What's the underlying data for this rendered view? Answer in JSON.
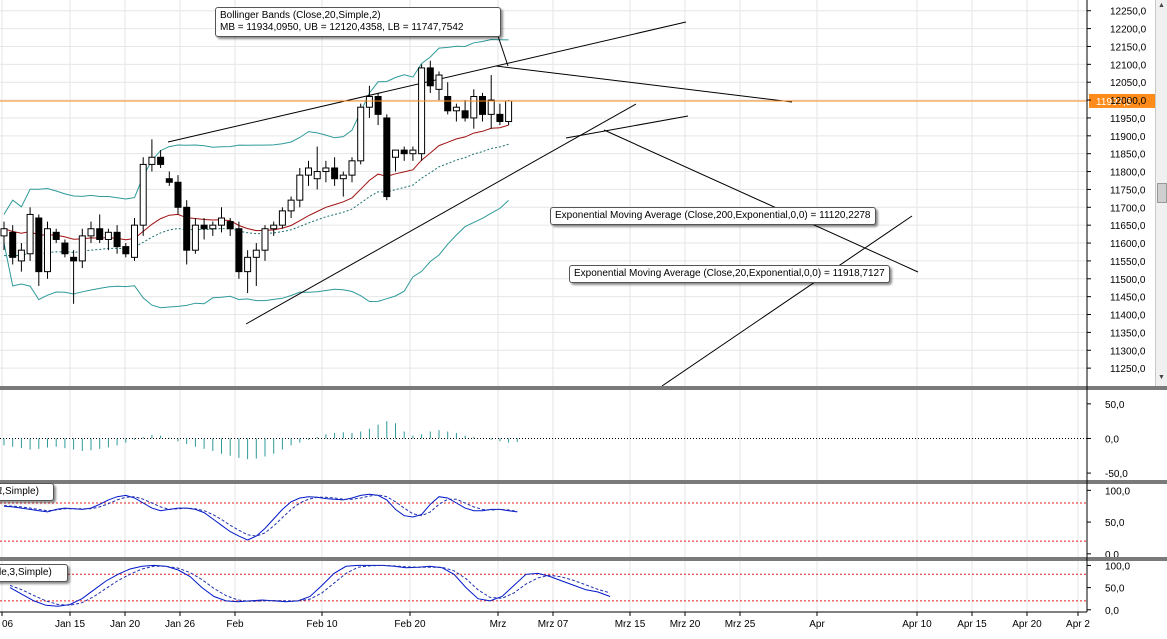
{
  "chart_data": [
    {
      "type": "candlestick",
      "ylim": [
        11200,
        12280
      ],
      "price_ticks": [
        "12250,0",
        "12200,0",
        "12150,0",
        "12100,0",
        "12050,0",
        "12000,0",
        "11950,0",
        "11900,0",
        "11850,0",
        "11800,0",
        "11750,0",
        "11700,0",
        "11650,0",
        "11600,0",
        "11550,0",
        "11500,0",
        "11450,0",
        "11400,0",
        "11350,0",
        "11300,0",
        "11250,0"
      ],
      "last_price": "11997,5",
      "candles": [
        {
          "o": 11620,
          "h": 11660,
          "l": 11580,
          "c": 11640
        },
        {
          "o": 11630,
          "h": 11650,
          "l": 11540,
          "c": 11560
        },
        {
          "o": 11550,
          "h": 11600,
          "l": 11520,
          "c": 11580
        },
        {
          "o": 11570,
          "h": 11700,
          "l": 11550,
          "c": 11680
        },
        {
          "o": 11670,
          "h": 11680,
          "l": 11480,
          "c": 11520
        },
        {
          "o": 11520,
          "h": 11660,
          "l": 11500,
          "c": 11640
        },
        {
          "o": 11630,
          "h": 11640,
          "l": 11600,
          "c": 11610
        },
        {
          "o": 11600,
          "h": 11610,
          "l": 11560,
          "c": 11570
        },
        {
          "o": 11560,
          "h": 11580,
          "l": 11430,
          "c": 11550
        },
        {
          "o": 11550,
          "h": 11640,
          "l": 11530,
          "c": 11620
        },
        {
          "o": 11620,
          "h": 11660,
          "l": 11600,
          "c": 11640
        },
        {
          "o": 11640,
          "h": 11680,
          "l": 11600,
          "c": 11610
        },
        {
          "o": 11610,
          "h": 11640,
          "l": 11580,
          "c": 11630
        },
        {
          "o": 11630,
          "h": 11650,
          "l": 11570,
          "c": 11590
        },
        {
          "o": 11590,
          "h": 11600,
          "l": 11560,
          "c": 11570
        },
        {
          "o": 11560,
          "h": 11670,
          "l": 11550,
          "c": 11650
        },
        {
          "o": 11650,
          "h": 11840,
          "l": 11620,
          "c": 11820
        },
        {
          "o": 11820,
          "h": 11890,
          "l": 11800,
          "c": 11840
        },
        {
          "o": 11840,
          "h": 11860,
          "l": 11810,
          "c": 11820
        },
        {
          "o": 11780,
          "h": 11800,
          "l": 11760,
          "c": 11770
        },
        {
          "o": 11770,
          "h": 11790,
          "l": 11680,
          "c": 11700
        },
        {
          "o": 11700,
          "h": 11720,
          "l": 11540,
          "c": 11580
        },
        {
          "o": 11580,
          "h": 11670,
          "l": 11570,
          "c": 11650
        },
        {
          "o": 11650,
          "h": 11670,
          "l": 11610,
          "c": 11640
        },
        {
          "o": 11640,
          "h": 11660,
          "l": 11620,
          "c": 11650
        },
        {
          "o": 11650,
          "h": 11700,
          "l": 11630,
          "c": 11670
        },
        {
          "o": 11660,
          "h": 11670,
          "l": 11620,
          "c": 11640
        },
        {
          "o": 11640,
          "h": 11660,
          "l": 11500,
          "c": 11520
        },
        {
          "o": 11520,
          "h": 11580,
          "l": 11460,
          "c": 11560
        },
        {
          "o": 11560,
          "h": 11600,
          "l": 11480,
          "c": 11580
        },
        {
          "o": 11580,
          "h": 11650,
          "l": 11550,
          "c": 11640
        },
        {
          "o": 11640,
          "h": 11660,
          "l": 11620,
          "c": 11650
        },
        {
          "o": 11650,
          "h": 11700,
          "l": 11640,
          "c": 11690
        },
        {
          "o": 11690,
          "h": 11730,
          "l": 11670,
          "c": 11720
        },
        {
          "o": 11720,
          "h": 11810,
          "l": 11700,
          "c": 11790
        },
        {
          "o": 11790,
          "h": 11830,
          "l": 11760,
          "c": 11810
        },
        {
          "o": 11780,
          "h": 11870,
          "l": 11750,
          "c": 11800
        },
        {
          "o": 11800,
          "h": 11830,
          "l": 11770,
          "c": 11810
        },
        {
          "o": 11810,
          "h": 11840,
          "l": 11760,
          "c": 11780
        },
        {
          "o": 11780,
          "h": 11800,
          "l": 11730,
          "c": 11790
        },
        {
          "o": 11790,
          "h": 11840,
          "l": 11770,
          "c": 11830
        },
        {
          "o": 11830,
          "h": 11990,
          "l": 11820,
          "c": 11980
        },
        {
          "o": 11980,
          "h": 12040,
          "l": 11950,
          "c": 12010
        },
        {
          "o": 12010,
          "h": 12020,
          "l": 11930,
          "c": 11960
        },
        {
          "o": 11950,
          "h": 11960,
          "l": 11720,
          "c": 11730
        },
        {
          "o": 11840,
          "h": 11860,
          "l": 11800,
          "c": 11860
        },
        {
          "o": 11860,
          "h": 11870,
          "l": 11830,
          "c": 11850
        },
        {
          "o": 11850,
          "h": 11870,
          "l": 11830,
          "c": 11860
        },
        {
          "o": 11850,
          "h": 12100,
          "l": 11830,
          "c": 12090
        },
        {
          "o": 12090,
          "h": 12110,
          "l": 12020,
          "c": 12040
        },
        {
          "o": 12030,
          "h": 12080,
          "l": 12000,
          "c": 12070
        },
        {
          "o": 12010,
          "h": 12050,
          "l": 11960,
          "c": 11970
        },
        {
          "o": 11970,
          "h": 11990,
          "l": 11940,
          "c": 11980
        },
        {
          "o": 11970,
          "h": 12000,
          "l": 11940,
          "c": 11950
        },
        {
          "o": 11950,
          "h": 12030,
          "l": 11920,
          "c": 12010
        },
        {
          "o": 12010,
          "h": 12020,
          "l": 11940,
          "c": 11960
        },
        {
          "o": 11960,
          "h": 12070,
          "l": 11920,
          "c": 12000
        },
        {
          "o": 11960,
          "h": 11990,
          "l": 11930,
          "c": 11940
        },
        {
          "o": 11940,
          "h": 12000,
          "l": 11930,
          "c": 11997.5
        }
      ],
      "bollinger": {
        "label": "Bollinger Bands (Close,20,Simple,2)",
        "values": "MB = 11934,0950, UB = 12120,4358, LB = 11747,7542"
      },
      "ema200_label": "Exponential Moving Average (Close,200,Exponential,0,0) = 11120,2278",
      "ema20_label": "Exponential Moving Average (Close,20,Exponential,0,0) = 11918,7127"
    },
    {
      "type": "bar",
      "ticks": [
        "50,0",
        "0,0",
        "-50,0"
      ],
      "ylim": [
        -60,
        70
      ],
      "values": [
        -10,
        -12,
        -14,
        -16,
        -15,
        -13,
        -12,
        -14,
        -16,
        -18,
        -17,
        -15,
        -13,
        -10,
        -6,
        -2,
        2,
        5,
        4,
        1,
        -4,
        -8,
        -12,
        -15,
        -18,
        -22,
        -25,
        -28,
        -30,
        -29,
        -26,
        -22,
        -16,
        -10,
        -6,
        -2,
        2,
        6,
        8,
        9,
        8,
        10,
        14,
        20,
        25,
        22,
        10,
        4,
        6,
        10,
        12,
        10,
        8,
        4,
        2,
        0,
        -2,
        -4,
        -6,
        -5
      ]
    },
    {
      "type": "line",
      "label": "ℓ,Simple)",
      "ticks": [
        "100,0",
        "50,0",
        "0,0"
      ],
      "ylim": [
        -5,
        110
      ],
      "levels": [
        80,
        20
      ],
      "series": [
        {
          "values": [
            75,
            74,
            72,
            70,
            68,
            66,
            70,
            72,
            71,
            70,
            72,
            78,
            85,
            90,
            92,
            88,
            80,
            72,
            68,
            70,
            72,
            72,
            70,
            65,
            55,
            45,
            35,
            28,
            22,
            28,
            40,
            55,
            70,
            82,
            88,
            90,
            89,
            87,
            86,
            85,
            88,
            92,
            94,
            92,
            85,
            70,
            60,
            58,
            62,
            78,
            90,
            88,
            80,
            72,
            68,
            68,
            70,
            70,
            68,
            66
          ]
        },
        {
          "values": [
            76,
            75,
            74,
            72,
            70,
            68,
            69,
            71,
            71,
            71,
            71,
            74,
            79,
            85,
            89,
            90,
            86,
            80,
            74,
            70,
            71,
            72,
            71,
            68,
            62,
            54,
            45,
            37,
            30,
            28,
            33,
            44,
            57,
            70,
            80,
            86,
            89,
            89,
            88,
            86,
            86,
            88,
            91,
            93,
            90,
            82,
            72,
            63,
            60,
            66,
            78,
            86,
            86,
            80,
            74,
            70,
            69,
            70,
            69,
            67
          ]
        }
      ]
    },
    {
      "type": "line",
      "label": "le,3,Simple)",
      "ticks": [
        "100,0",
        "50,0",
        "0,0"
      ],
      "ylim": [
        -5,
        110
      ],
      "levels": [
        80,
        20
      ],
      "series": [
        {
          "values": [
            50,
            35,
            20,
            10,
            8,
            12,
            25,
            45,
            65,
            80,
            92,
            98,
            100,
            98,
            90,
            75,
            50,
            30,
            20,
            18,
            20,
            22,
            20,
            18,
            20,
            30,
            55,
            82,
            98,
            100,
            100,
            100,
            98,
            95,
            96,
            98,
            95,
            80,
            50,
            25,
            20,
            30,
            55,
            80,
            82,
            75,
            65,
            55,
            45,
            40,
            30
          ]
        },
        {
          "values": [
            55,
            45,
            32,
            20,
            12,
            10,
            16,
            30,
            48,
            66,
            80,
            92,
            98,
            98,
            94,
            84,
            68,
            48,
            32,
            22,
            19,
            20,
            21,
            20,
            20,
            24,
            38,
            60,
            82,
            96,
            99,
            100,
            99,
            97,
            96,
            96,
            96,
            88,
            70,
            45,
            28,
            26,
            38,
            58,
            72,
            78,
            74,
            66,
            56,
            46,
            38
          ]
        }
      ]
    }
  ],
  "x_labels": [
    "06",
    "Jan 15",
    "Jan 20",
    "Jan 26",
    "Feb",
    "Feb 10",
    "Feb 20",
    "Mrz",
    "Mrz 07",
    "Mrz 15",
    "Mrz 20",
    "Mrz 25",
    "Apr",
    "Apr 10",
    "Apr 15",
    "Apr 20",
    "Apr 2"
  ],
  "colors": {
    "up": "#ffffff",
    "down": "#000000",
    "bands": "#2f9a9a",
    "ema20": "#a01010",
    "ema200": "#1c7070",
    "price_line": "#ff8c1a",
    "stoch_k": "#0018c8",
    "stoch_d": "#2030b0",
    "level": "#e02020",
    "panel_sep": "#7a7a7a"
  }
}
